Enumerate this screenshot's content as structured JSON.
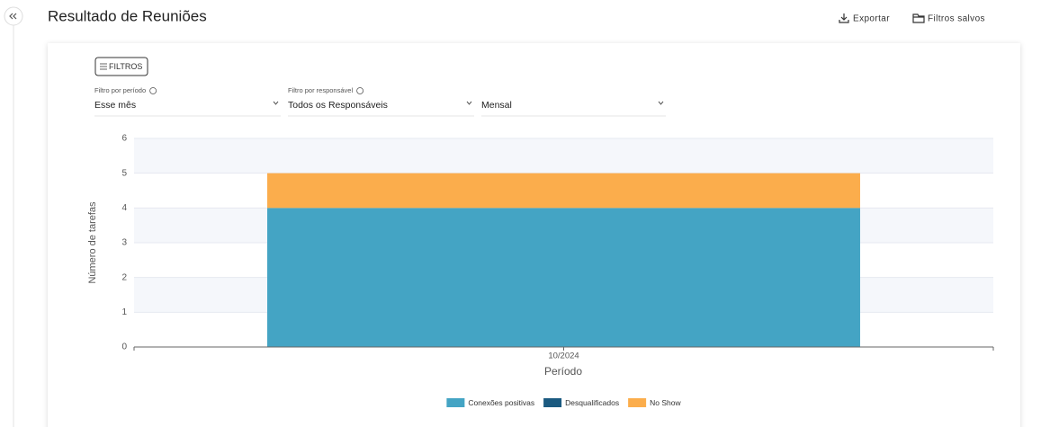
{
  "header": {
    "title": "Resultado de Reuniões",
    "actions": [
      "Exportar",
      "Filtros salvos"
    ]
  },
  "filters": {
    "button": "FILTROS",
    "fields": [
      {
        "label": "Filtro por período",
        "value": "Esse mês"
      },
      {
        "label": "Filtro por responsável",
        "value": "Todos os Responsáveis"
      },
      {
        "value": "Mensal"
      }
    ]
  },
  "chart_data": {
    "type": "bar",
    "stacked": true,
    "x_label": "Período",
    "y_label": "Número de tarefas",
    "categories": [
      "10/2024"
    ],
    "series": [
      {
        "name": "Conexões positivas",
        "color": "#44a4c4",
        "values": [
          4
        ]
      },
      {
        "name": "Desqualificados",
        "color": "#1b5a80",
        "values": [
          0
        ]
      },
      {
        "name": "No Show",
        "color": "#fbad4c",
        "values": [
          1
        ]
      }
    ],
    "ylim": [
      0,
      6
    ],
    "yticks": [
      0,
      1,
      2,
      3,
      4,
      5,
      6
    ],
    "grid": true,
    "legend": "bottom"
  }
}
